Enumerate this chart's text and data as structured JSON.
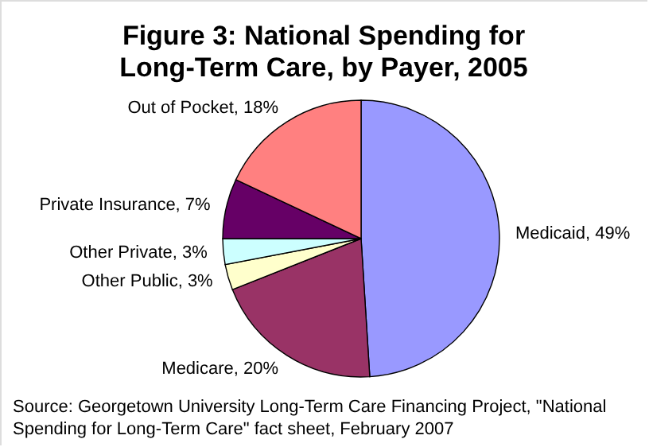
{
  "chart_data": {
    "type": "pie",
    "title": "Figure 3: National Spending for Long-Term Care, by Payer, 2005",
    "categories": [
      "Medicaid",
      "Medicare",
      "Other Public",
      "Other Private",
      "Private Insurance",
      "Out of Pocket"
    ],
    "values": [
      49,
      20,
      3,
      3,
      7,
      18
    ],
    "colors": [
      "#9999ff",
      "#993366",
      "#ffffcc",
      "#ccffff",
      "#660066",
      "#ff8080"
    ],
    "value_labels": [
      "49%",
      "20%",
      "3%",
      "3%",
      "7%",
      "18%"
    ],
    "annotations": [
      "Source:  Georgetown University Long-Term Care Financing Project, \"National Spending for Long-Term Care\" fact sheet, February 2007"
    ]
  }
}
